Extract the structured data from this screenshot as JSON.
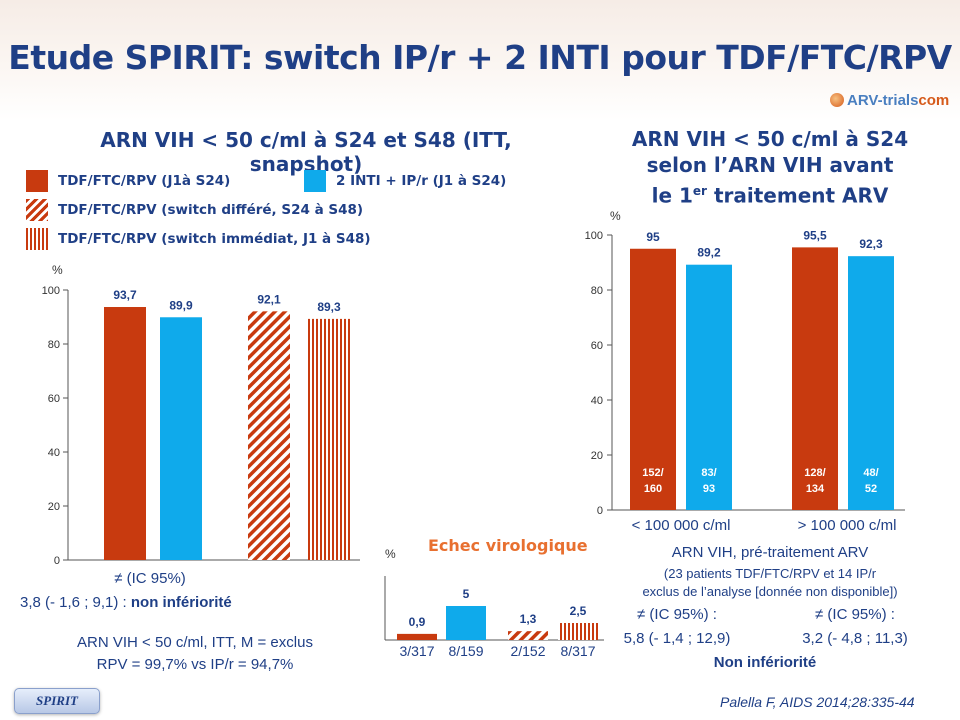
{
  "title": "Etude SPIRIT: switch IP/r + 2 INTI pour TDF/FTC/RPV",
  "logo": {
    "text": "ARV-trials",
    "suffix": "com"
  },
  "left_heading": "ARN VIH < 50 c/ml à S24 et S48 (ITT, snapshot)",
  "right_heading": {
    "line1": "ARN VIH < 50 c/ml à S24",
    "line2": "selon l’ARN VIH avant",
    "line3a": "le 1",
    "line3sup": "er",
    "line3b": " traitement ARV"
  },
  "legend": {
    "red": "TDF/FTC/RPV (J1à S24)",
    "blue": "2 INTI + IP/r (J1 à S24)",
    "diag": "TDF/FTC/RPV (switch différé, S24 à S48)",
    "vert": "TDF/FTC/RPV (switch immédiat, J1 à S48)"
  },
  "colors": {
    "red": "#c83a0f",
    "blue": "#0faaeb",
    "text": "#1f3f86",
    "orange": "#e87030"
  },
  "chart_data": [
    {
      "type": "bar",
      "ylabel": "%",
      "ylim": [
        0,
        100
      ],
      "yticks": [
        "0",
        "20",
        "40",
        "60",
        "80",
        "100"
      ],
      "bars": [
        {
          "label": "93,7",
          "value": 93.7,
          "fill": "solid-red"
        },
        {
          "label": "89,9",
          "value": 89.9,
          "fill": "solid-blue"
        },
        {
          "label": "92,1",
          "value": 92.1,
          "fill": "diag"
        },
        {
          "label": "89,3",
          "value": 89.3,
          "fill": "vert"
        }
      ]
    },
    {
      "type": "bar",
      "ylabel": "%",
      "ylim": [
        0,
        100
      ],
      "yticks": [
        "0",
        "20",
        "40",
        "60",
        "80",
        "100"
      ],
      "categories": [
        "< 100 000 c/ml",
        "> 100 000 c/ml"
      ],
      "bars": [
        {
          "label": "95",
          "value": 95,
          "fill": "solid-red",
          "inner1": "152/",
          "inner2": "160"
        },
        {
          "label": "89,2",
          "value": 89.2,
          "fill": "solid-blue",
          "inner1": "83/",
          "inner2": "93"
        },
        {
          "label": "95,5",
          "value": 95.5,
          "fill": "solid-red",
          "inner1": "128/",
          "inner2": "134"
        },
        {
          "label": "92,3",
          "value": 92.3,
          "fill": "solid-blue",
          "inner1": "48/",
          "inner2": "52"
        }
      ],
      "xlabel": "ARN VIH, pré-traitement ARV"
    },
    {
      "type": "bar",
      "title": "Echec virologique",
      "ylabel": "%",
      "bars": [
        {
          "label": "0,9",
          "value": 0.9,
          "fill": "solid-red",
          "count": "3/317"
        },
        {
          "label": "5",
          "value": 5,
          "fill": "solid-blue",
          "count": "8/159"
        },
        {
          "label": "1,3",
          "value": 1.3,
          "fill": "diag",
          "count": "2/152"
        },
        {
          "label": "2,5",
          "value": 2.5,
          "fill": "vert",
          "count": "8/317"
        }
      ]
    }
  ],
  "left_notes": {
    "ic": "≠ (IC 95%)",
    "ic_value": "3,8 (- 1,6 ; 9,1) : ",
    "ic_conclusion": "non infériorité",
    "m1": "ARN VIH < 50 c/ml, ITT, M = exclus",
    "m2": "RPV = 99,7% vs IP/r = 94,7%"
  },
  "right_notes": {
    "sub1": "(23 patients TDF/FTC/RPV et 14 IP/r",
    "sub2": "exclus de l’analyse [donnée non disponible])",
    "ic_a": "≠ (IC 95%) :",
    "ic_a_val": "5,8 (- 1,4 ; 12,9)",
    "ic_b": "≠ (IC 95%) :",
    "ic_b_val": "3,2 (- 4,8 ; 11,3)",
    "conclusion": "Non infériorité"
  },
  "citation": "Palella F, AIDS 2014;28:335-44",
  "badge": "SPIRIT"
}
